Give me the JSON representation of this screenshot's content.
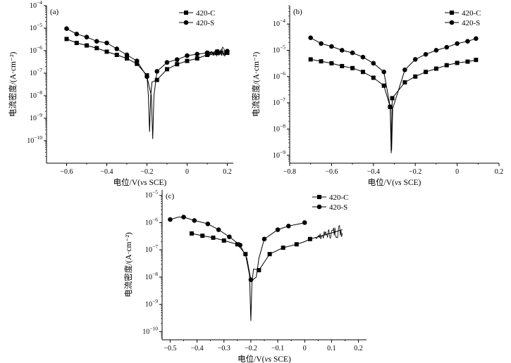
{
  "chart_data": [
    {
      "panel_label": "(a)",
      "type": "line",
      "y_scale": "log",
      "xlabel_prefix": "电位/V(",
      "xlabel_italic": "vs",
      "xlabel_suffix": " SCE)",
      "ylabel": "电流密度/(A·cm⁻²)",
      "xlim": [
        -0.7,
        0.23
      ],
      "ylim_exp": [
        -11,
        -4
      ],
      "xticks": [
        -0.6,
        -0.4,
        -0.2,
        0,
        0.2
      ],
      "xtick_labels": [
        "−0.6",
        "−0.4",
        "−0.2",
        "0",
        "0.2"
      ],
      "ytick_exps": [
        -10,
        -9,
        -8,
        -7,
        -6,
        -5,
        -4
      ],
      "legend_placement": "top-right",
      "series": [
        {
          "name": "420-C",
          "marker": "square",
          "points": [
            [
              -0.6,
              3.3e-06
            ],
            [
              -0.55,
              2.2e-06
            ],
            [
              -0.5,
              1.7e-06
            ],
            [
              -0.45,
              1.3e-06
            ],
            [
              -0.4,
              9e-07
            ],
            [
              -0.35,
              6.5e-07
            ],
            [
              -0.3,
              4.5e-07
            ],
            [
              -0.25,
              2.6e-07
            ],
            [
              -0.2,
              8e-08
            ],
            [
              -0.193,
              1e-08
            ],
            [
              -0.187,
              2.5e-10
            ],
            [
              -0.181,
              1e-08
            ],
            [
              -0.175,
              4e-08
            ],
            [
              -0.15,
              5e-08
            ],
            [
              -0.1,
              1.5e-07
            ],
            [
              -0.05,
              2.5e-07
            ],
            [
              0,
              3.5e-07
            ],
            [
              0.05,
              4.5e-07
            ],
            [
              0.1,
              6.5e-07
            ],
            [
              0.15,
              8e-07
            ],
            [
              0.2,
              8e-07
            ]
          ],
          "marker_points": [
            [
              -0.6,
              3.3e-06
            ],
            [
              -0.55,
              2.2e-06
            ],
            [
              -0.5,
              1.7e-06
            ],
            [
              -0.45,
              1.3e-06
            ],
            [
              -0.4,
              9e-07
            ],
            [
              -0.35,
              6.5e-07
            ],
            [
              -0.3,
              4.5e-07
            ],
            [
              -0.25,
              2.6e-07
            ],
            [
              -0.2,
              8e-08
            ],
            [
              -0.15,
              5e-08
            ],
            [
              -0.1,
              1.5e-07
            ],
            [
              -0.05,
              2.5e-07
            ],
            [
              0,
              3.5e-07
            ],
            [
              0.05,
              4.5e-07
            ],
            [
              0.1,
              6.5e-07
            ],
            [
              0.15,
              8e-07
            ],
            [
              0.2,
              8e-07
            ]
          ]
        },
        {
          "name": "420-S",
          "marker": "circle",
          "points": [
            [
              -0.6,
              9.5e-06
            ],
            [
              -0.55,
              5.5e-06
            ],
            [
              -0.5,
              4e-06
            ],
            [
              -0.45,
              2.6e-06
            ],
            [
              -0.4,
              2.2e-06
            ],
            [
              -0.35,
              1.2e-06
            ],
            [
              -0.3,
              6.5e-07
            ],
            [
              -0.25,
              3.5e-07
            ],
            [
              -0.2,
              7e-08
            ],
            [
              -0.178,
              1e-08
            ],
            [
              -0.171,
              1.2e-10
            ],
            [
              -0.165,
              1e-08
            ],
            [
              -0.15,
              1.2e-07
            ],
            [
              -0.1,
              3e-07
            ],
            [
              -0.05,
              4e-07
            ],
            [
              0,
              6e-07
            ],
            [
              0.05,
              7e-07
            ],
            [
              0.1,
              8e-07
            ],
            [
              0.15,
              9e-07
            ],
            [
              0.2,
              9.5e-07
            ]
          ],
          "marker_points": [
            [
              -0.6,
              9.5e-06
            ],
            [
              -0.55,
              5.5e-06
            ],
            [
              -0.5,
              4e-06
            ],
            [
              -0.45,
              2.6e-06
            ],
            [
              -0.4,
              2.2e-06
            ],
            [
              -0.35,
              1.2e-06
            ],
            [
              -0.3,
              6.5e-07
            ],
            [
              -0.25,
              3.5e-07
            ],
            [
              -0.2,
              7e-08
            ],
            [
              -0.15,
              1.2e-07
            ],
            [
              -0.1,
              3e-07
            ],
            [
              -0.05,
              4e-07
            ],
            [
              0,
              6e-07
            ],
            [
              0.05,
              7e-07
            ],
            [
              0.1,
              8e-07
            ],
            [
              0.15,
              9e-07
            ],
            [
              0.2,
              9.5e-07
            ]
          ]
        }
      ]
    },
    {
      "panel_label": "(b)",
      "type": "line",
      "y_scale": "log",
      "xlabel_prefix": "电位/V(",
      "xlabel_italic": "vs",
      "xlabel_suffix": " SCE)",
      "ylabel": "电流密度/(A·cm⁻²)",
      "xlim": [
        -0.8,
        0.2
      ],
      "ylim_exp": [
        -9.3,
        -3.3
      ],
      "xticks": [
        -0.8,
        -0.6,
        -0.4,
        -0.2,
        0,
        0.2
      ],
      "xtick_labels": [
        "−0.8",
        "−0.6",
        "−0.4",
        "−0.2",
        "0",
        "0.2"
      ],
      "ytick_exps": [
        -9,
        -8,
        -7,
        -6,
        -5,
        -4
      ],
      "legend_placement": "top-right",
      "series": [
        {
          "name": "420-C",
          "marker": "square",
          "points": [
            [
              -0.7,
              4.5e-06
            ],
            [
              -0.65,
              3.8e-06
            ],
            [
              -0.6,
              3.2e-06
            ],
            [
              -0.55,
              2.5e-06
            ],
            [
              -0.5,
              2.1e-06
            ],
            [
              -0.45,
              1.5e-06
            ],
            [
              -0.4,
              9e-07
            ],
            [
              -0.35,
              4.5e-07
            ],
            [
              -0.32,
              7e-08
            ],
            [
              -0.315,
              1.2e-09
            ],
            [
              -0.31,
              1.5e-07
            ],
            [
              -0.25,
              6e-07
            ],
            [
              -0.2,
              1e-06
            ],
            [
              -0.15,
              1.5e-06
            ],
            [
              -0.1,
              2e-06
            ],
            [
              -0.05,
              2.7e-06
            ],
            [
              0,
              3.3e-06
            ],
            [
              0.05,
              3.7e-06
            ],
            [
              0.09,
              4.3e-06
            ]
          ],
          "marker_points": [
            [
              -0.7,
              4.5e-06
            ],
            [
              -0.65,
              3.8e-06
            ],
            [
              -0.6,
              3.2e-06
            ],
            [
              -0.55,
              2.5e-06
            ],
            [
              -0.5,
              2.1e-06
            ],
            [
              -0.45,
              1.5e-06
            ],
            [
              -0.4,
              9e-07
            ],
            [
              -0.35,
              4.5e-07
            ],
            [
              -0.32,
              7e-08
            ],
            [
              -0.31,
              1.5e-07
            ],
            [
              -0.25,
              6e-07
            ],
            [
              -0.2,
              1e-06
            ],
            [
              -0.15,
              1.5e-06
            ],
            [
              -0.1,
              2e-06
            ],
            [
              -0.05,
              2.7e-06
            ],
            [
              0,
              3.3e-06
            ],
            [
              0.05,
              3.7e-06
            ],
            [
              0.09,
              4.3e-06
            ]
          ]
        },
        {
          "name": "420-S",
          "marker": "circle",
          "points": [
            [
              -0.7,
              3e-05
            ],
            [
              -0.65,
              1.8e-05
            ],
            [
              -0.6,
              1.4e-05
            ],
            [
              -0.55,
              1e-05
            ],
            [
              -0.5,
              8e-06
            ],
            [
              -0.45,
              5.5e-06
            ],
            [
              -0.4,
              3.2e-06
            ],
            [
              -0.35,
              1.5e-06
            ],
            [
              -0.32,
              7e-08
            ],
            [
              -0.313,
              1.5e-09
            ],
            [
              -0.308,
              6e-08
            ],
            [
              -0.25,
              1.8e-06
            ],
            [
              -0.2,
              4.5e-06
            ],
            [
              -0.15,
              7e-06
            ],
            [
              -0.1,
              1e-05
            ],
            [
              -0.05,
              1.3e-05
            ],
            [
              0,
              1.8e-05
            ],
            [
              0.05,
              2.2e-05
            ],
            [
              0.09,
              2.8e-05
            ]
          ],
          "marker_points": [
            [
              -0.7,
              3e-05
            ],
            [
              -0.65,
              1.8e-05
            ],
            [
              -0.6,
              1.4e-05
            ],
            [
              -0.55,
              1e-05
            ],
            [
              -0.5,
              8e-06
            ],
            [
              -0.45,
              5.5e-06
            ],
            [
              -0.4,
              3.2e-06
            ],
            [
              -0.35,
              1.5e-06
            ],
            [
              -0.32,
              7e-08
            ],
            [
              -0.25,
              1.8e-06
            ],
            [
              -0.2,
              4.5e-06
            ],
            [
              -0.15,
              7e-06
            ],
            [
              -0.1,
              1e-05
            ],
            [
              -0.05,
              1.3e-05
            ],
            [
              0,
              1.8e-05
            ],
            [
              0.05,
              2.2e-05
            ],
            [
              0.09,
              2.8e-05
            ]
          ]
        }
      ]
    },
    {
      "panel_label": "(c)",
      "type": "line",
      "y_scale": "log",
      "xlabel_prefix": "电位/V(",
      "xlabel_italic": "vs",
      "xlabel_suffix": " SCE)",
      "ylabel": "电流密度/(A·cm⁻²)",
      "xlim": [
        -0.53,
        0.23
      ],
      "ylim_exp": [
        -10.3,
        -4.8
      ],
      "xticks": [
        -0.5,
        -0.4,
        -0.3,
        -0.2,
        -0.1,
        0,
        0.1,
        0.2
      ],
      "xtick_labels": [
        "−0.5",
        "−0.4",
        "−0.3",
        "−0.2",
        "−0.1",
        "0",
        "0.1",
        "0.2"
      ],
      "ytick_exps": [
        -10,
        -9,
        -8,
        -7,
        -6,
        -5
      ],
      "legend_placement": "top-right",
      "series": [
        {
          "name": "420-C",
          "marker": "square",
          "points": [
            [
              -0.42,
              4e-07
            ],
            [
              -0.38,
              3.3e-07
            ],
            [
              -0.34,
              2.8e-07
            ],
            [
              -0.3,
              2.2e-07
            ],
            [
              -0.25,
              1.6e-07
            ],
            [
              -0.22,
              7e-08
            ],
            [
              -0.205,
              1.2e-08
            ],
            [
              -0.2,
              2.5e-10
            ],
            [
              -0.196,
              6e-09
            ],
            [
              -0.19,
              2e-08
            ],
            [
              -0.17,
              1.8e-08
            ],
            [
              -0.13,
              7e-08
            ],
            [
              -0.08,
              1.2e-07
            ],
            [
              -0.03,
              1.6e-07
            ],
            [
              0,
              2e-07
            ],
            [
              0.02,
              2.5e-07
            ],
            [
              0.06,
              3.2e-07
            ],
            [
              0.1,
              4.2e-07
            ],
            [
              0.14,
              5.5e-07
            ]
          ],
          "marker_points": [
            [
              -0.42,
              4e-07
            ],
            [
              -0.38,
              3.3e-07
            ],
            [
              -0.34,
              2.8e-07
            ],
            [
              -0.3,
              2.2e-07
            ],
            [
              -0.25,
              1.6e-07
            ],
            [
              -0.22,
              7e-08
            ],
            [
              -0.17,
              1.8e-08
            ],
            [
              -0.13,
              7e-08
            ],
            [
              -0.08,
              1.2e-07
            ],
            [
              -0.03,
              1.6e-07
            ],
            [
              0.02,
              2.5e-07
            ]
          ]
        },
        {
          "name": "420-S",
          "marker": "circle",
          "points": [
            [
              -0.5,
              1.3e-06
            ],
            [
              -0.47,
              1.6e-06
            ],
            [
              -0.45,
              1.6e-06
            ],
            [
              -0.41,
              1.2e-06
            ],
            [
              -0.36,
              9e-07
            ],
            [
              -0.32,
              5.5e-07
            ],
            [
              -0.28,
              3e-07
            ],
            [
              -0.24,
              1.5e-07
            ],
            [
              -0.215,
              5e-08
            ],
            [
              -0.2,
              8e-09
            ],
            [
              -0.193,
              8e-09
            ],
            [
              -0.18,
              1e-08
            ],
            [
              -0.17,
              5e-08
            ],
            [
              -0.15,
              2.5e-07
            ],
            [
              -0.1,
              5.5e-07
            ],
            [
              -0.06,
              7.5e-07
            ],
            [
              -0.02,
              9e-07
            ],
            [
              0,
              1e-06
            ]
          ],
          "marker_points": [
            [
              -0.5,
              1.3e-06
            ],
            [
              -0.45,
              1.6e-06
            ],
            [
              -0.41,
              1.2e-06
            ],
            [
              -0.36,
              9e-07
            ],
            [
              -0.32,
              5.5e-07
            ],
            [
              -0.28,
              3e-07
            ],
            [
              -0.24,
              1.5e-07
            ],
            [
              -0.2,
              8e-09
            ],
            [
              -0.15,
              2.5e-07
            ],
            [
              -0.1,
              5.5e-07
            ],
            [
              -0.06,
              7.5e-07
            ],
            [
              0,
              1e-06
            ]
          ]
        }
      ]
    }
  ]
}
